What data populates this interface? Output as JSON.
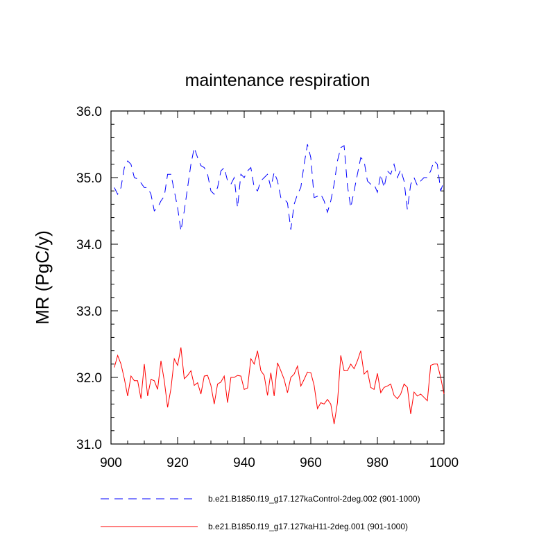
{
  "chart_data": {
    "type": "line",
    "title": "maintenance respiration",
    "xlabel": "",
    "ylabel": "MR  (PgC/y)",
    "xlim": [
      900,
      1000
    ],
    "ylim": [
      31.0,
      36.0
    ],
    "x_ticks": [
      900,
      920,
      940,
      960,
      980,
      1000
    ],
    "x_tick_labels": [
      "900",
      "920",
      "940",
      "960",
      "980",
      "1000"
    ],
    "y_ticks": [
      31.0,
      32.0,
      33.0,
      34.0,
      35.0,
      36.0
    ],
    "y_tick_labels": [
      "31.0",
      "32.0",
      "33.0",
      "34.0",
      "35.0",
      "36.0"
    ],
    "x": [
      901,
      902,
      903,
      904,
      905,
      906,
      907,
      908,
      909,
      910,
      911,
      912,
      913,
      914,
      915,
      916,
      917,
      918,
      919,
      920,
      921,
      922,
      923,
      924,
      925,
      926,
      927,
      928,
      929,
      930,
      931,
      932,
      933,
      934,
      935,
      936,
      937,
      938,
      939,
      940,
      941,
      942,
      943,
      944,
      945,
      946,
      947,
      948,
      949,
      950,
      951,
      952,
      953,
      954,
      955,
      956,
      957,
      958,
      959,
      960,
      961,
      962,
      963,
      964,
      965,
      966,
      967,
      968,
      969,
      970,
      971,
      972,
      973,
      974,
      975,
      976,
      977,
      978,
      979,
      980,
      981,
      982,
      983,
      984,
      985,
      986,
      987,
      988,
      989,
      990,
      991,
      992,
      993,
      994,
      995,
      996,
      997,
      998,
      999,
      1000
    ],
    "series": [
      {
        "name": "b.e21.B1850.f19_g17.127kaControl-2deg.002 (901-1000)",
        "color": "#0000ff",
        "style": "dashed",
        "values": [
          34.85,
          34.75,
          34.85,
          35.15,
          35.25,
          35.2,
          35.0,
          34.98,
          34.92,
          34.85,
          34.85,
          34.75,
          34.5,
          34.55,
          34.65,
          34.72,
          35.05,
          35.05,
          34.8,
          34.55,
          34.2,
          34.5,
          34.85,
          35.2,
          35.45,
          35.3,
          35.18,
          35.15,
          35.05,
          34.8,
          34.75,
          34.85,
          35.1,
          35.15,
          34.95,
          34.9,
          35.0,
          34.55,
          35.05,
          35.0,
          35.1,
          35.15,
          34.85,
          34.8,
          34.95,
          35.0,
          35.05,
          34.85,
          35.08,
          34.95,
          34.7,
          34.68,
          34.62,
          34.22,
          34.6,
          34.75,
          34.85,
          35.2,
          35.5,
          35.3,
          34.7,
          34.72,
          34.75,
          34.65,
          34.48,
          34.65,
          34.9,
          35.25,
          35.45,
          35.48,
          34.88,
          34.55,
          34.8,
          35.05,
          35.3,
          35.25,
          34.95,
          34.9,
          34.9,
          34.78,
          35.05,
          34.85,
          35.1,
          35.05,
          35.2,
          35.0,
          35.12,
          34.95,
          34.52,
          34.9,
          35.0,
          34.88,
          34.95,
          35.0,
          35.0,
          35.1,
          35.25,
          35.2,
          34.8,
          34.95
        ]
      },
      {
        "name": "b.e21.B1850.f19_g17.127kaH11-2deg.001 (901-1000)",
        "color": "#ff0000",
        "style": "solid",
        "values": [
          32.15,
          32.33,
          32.2,
          31.98,
          31.72,
          32.02,
          31.95,
          31.95,
          31.68,
          32.2,
          31.72,
          31.97,
          31.95,
          31.82,
          32.25,
          31.95,
          31.55,
          31.83,
          32.28,
          32.18,
          32.45,
          31.98,
          32.03,
          32.1,
          31.88,
          31.92,
          31.75,
          32.02,
          32.03,
          31.88,
          31.6,
          31.9,
          31.93,
          32.02,
          31.62,
          32.0,
          32.0,
          32.03,
          32.02,
          31.82,
          31.84,
          32.28,
          32.2,
          32.4,
          32.1,
          32.03,
          31.73,
          32.07,
          31.72,
          32.22,
          32.1,
          31.97,
          31.77,
          32.0,
          32.05,
          32.17,
          31.87,
          31.97,
          32.08,
          32.07,
          31.88,
          31.53,
          31.62,
          31.6,
          31.67,
          31.6,
          31.3,
          31.62,
          32.33,
          32.1,
          32.1,
          32.2,
          32.13,
          32.25,
          32.4,
          32.05,
          32.1,
          31.85,
          31.82,
          32.06,
          31.77,
          31.85,
          31.87,
          31.9,
          31.73,
          31.68,
          31.75,
          31.9,
          31.85,
          31.45,
          31.78,
          31.72,
          31.75,
          31.7,
          31.65,
          32.18,
          32.2,
          32.2,
          32.0,
          31.75
        ]
      }
    ],
    "legend_position": "bottom"
  }
}
